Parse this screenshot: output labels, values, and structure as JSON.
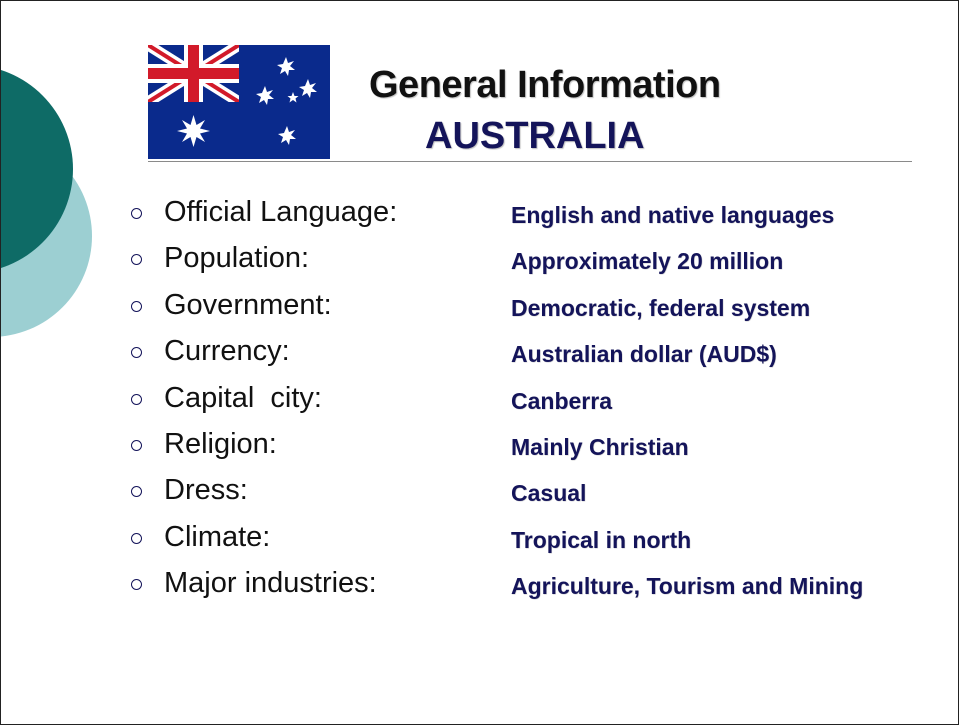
{
  "slide": {
    "title": "General Information",
    "subtitle": "AUSTRALIA",
    "facts": [
      {
        "label": "Official Language:",
        "value": "English and native languages"
      },
      {
        "label": "Population:",
        "value": "Approximately 20 million"
      },
      {
        "label": "Government:",
        "value": "Democratic, federal system"
      },
      {
        "label": "Currency:",
        "value": "Australian dollar (AUD$)"
      },
      {
        "label": "Capital  city:",
        "value": "Canberra"
      },
      {
        "label": "Religion:",
        "value": "Mainly Christian"
      },
      {
        "label": "Dress:",
        "value": "Casual"
      },
      {
        "label": "Climate:",
        "value": "Tropical in north"
      },
      {
        "label": "Major industries:",
        "value": "Agriculture, Tourism and Mining"
      }
    ]
  },
  "icons": {
    "flag": "australian-flag-icon",
    "bullet": "hollow-circle-bullet-icon"
  },
  "colors": {
    "accent_dark_teal": "#0e6b66",
    "accent_light_teal": "#9ccfd2",
    "title_text": "#111111",
    "value_text": "#14145a",
    "flag_blue": "#0a2a8c",
    "flag_red": "#d21a2a"
  }
}
